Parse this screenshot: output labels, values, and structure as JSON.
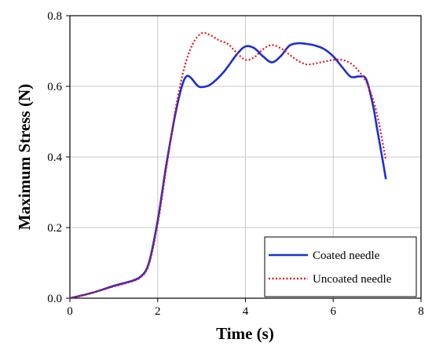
{
  "chart_data": {
    "type": "line",
    "title": "",
    "xlabel": "Time (s)",
    "ylabel": "Maximum Stress (N)",
    "xlim": [
      0,
      8
    ],
    "ylim": [
      0,
      0.8
    ],
    "x_ticks": [
      0,
      2,
      4,
      6,
      8
    ],
    "x_tick_labels": [
      "0",
      "2",
      "4",
      "6",
      "8"
    ],
    "y_ticks": [
      0,
      0.2,
      0.4,
      0.6,
      0.8
    ],
    "y_tick_labels": [
      "0.0",
      "0.2",
      "0.4",
      "0.6",
      "0.8"
    ],
    "grid": true,
    "legend_position": "bottom-right",
    "series": [
      {
        "name": "Coated needle",
        "color": "#1a2fd6",
        "style": "solid",
        "x": [
          0,
          0.5,
          1.0,
          1.3,
          1.6,
          1.8,
          2.0,
          2.2,
          2.4,
          2.55,
          2.65,
          2.75,
          2.9,
          3.0,
          3.2,
          3.5,
          3.8,
          4.0,
          4.2,
          4.4,
          4.6,
          4.8,
          5.0,
          5.2,
          5.4,
          5.6,
          5.8,
          6.0,
          6.2,
          6.4,
          6.6,
          6.75,
          6.9,
          7.0,
          7.1,
          7.2
        ],
        "y": [
          0,
          0.015,
          0.035,
          0.045,
          0.06,
          0.1,
          0.22,
          0.38,
          0.52,
          0.6,
          0.628,
          0.625,
          0.603,
          0.598,
          0.605,
          0.64,
          0.69,
          0.713,
          0.708,
          0.685,
          0.668,
          0.685,
          0.715,
          0.722,
          0.72,
          0.715,
          0.705,
          0.685,
          0.655,
          0.627,
          0.628,
          0.62,
          0.55,
          0.48,
          0.41,
          0.337
        ]
      },
      {
        "name": "Uncoated needle",
        "color": "#e8141e",
        "style": "dotted",
        "x": [
          0,
          0.5,
          1.0,
          1.3,
          1.6,
          1.8,
          2.0,
          2.2,
          2.4,
          2.6,
          2.8,
          3.0,
          3.2,
          3.4,
          3.6,
          3.8,
          4.0,
          4.2,
          4.4,
          4.6,
          4.8,
          5.0,
          5.2,
          5.4,
          5.6,
          5.8,
          6.0,
          6.2,
          6.4,
          6.6,
          6.8,
          7.0,
          7.2
        ],
        "y": [
          0,
          0.015,
          0.033,
          0.043,
          0.058,
          0.095,
          0.21,
          0.37,
          0.53,
          0.65,
          0.72,
          0.75,
          0.745,
          0.73,
          0.72,
          0.695,
          0.675,
          0.682,
          0.705,
          0.717,
          0.708,
          0.69,
          0.672,
          0.662,
          0.665,
          0.67,
          0.675,
          0.675,
          0.665,
          0.64,
          0.6,
          0.52,
          0.39
        ]
      }
    ]
  }
}
